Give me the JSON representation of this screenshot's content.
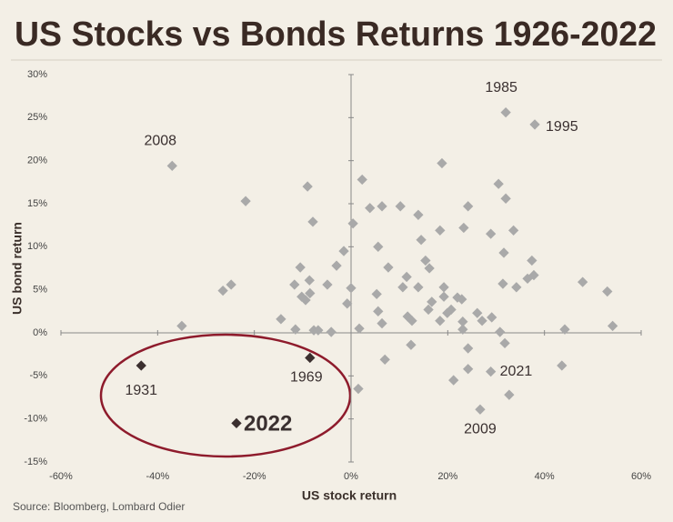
{
  "chart_data": {
    "type": "scatter",
    "title": "US Stocks vs Bonds Returns 1926-2022",
    "x_label": "US stock return",
    "y_label": "US bond return",
    "source": "Source: Bloomberg, Lombard Odier",
    "xlim": [
      -60,
      60
    ],
    "ylim": [
      -15,
      30
    ],
    "xticks": [
      {
        "value": -60,
        "label": "-60%"
      },
      {
        "value": -40,
        "label": "-40%"
      },
      {
        "value": -20,
        "label": "-20%"
      },
      {
        "value": 0,
        "label": "0%"
      },
      {
        "value": 20,
        "label": "20%"
      },
      {
        "value": 40,
        "label": "40%"
      },
      {
        "value": 60,
        "label": "60%"
      }
    ],
    "yticks": [
      {
        "value": -15,
        "label": "-15%"
      },
      {
        "value": -10,
        "label": "-10%"
      },
      {
        "value": -5,
        "label": "-5%"
      },
      {
        "value": 0,
        "label": "0%"
      },
      {
        "value": 5,
        "label": "5%"
      },
      {
        "value": 10,
        "label": "10%"
      },
      {
        "value": 15,
        "label": "15%"
      },
      {
        "value": 20,
        "label": "20%"
      },
      {
        "value": 25,
        "label": "25%"
      },
      {
        "value": 30,
        "label": "30%"
      }
    ],
    "series": [
      {
        "color": "#a9a9a9",
        "x": [
          32,
          38,
          -37,
          28.9,
          26.7,
          -21.8,
          -9,
          -7.9,
          2.3,
          18.8,
          30.5,
          32,
          33.6,
          31.6,
          37.4,
          24.2,
          3.9,
          6.4,
          10.2,
          13.9,
          0.4,
          18.4,
          23.3,
          28.9,
          14.5,
          5.6,
          -1.5,
          -3,
          -4.9,
          7.7,
          11.5,
          15.4,
          16.2,
          -10.5,
          -8.6,
          -11.7,
          -24.8,
          -26.5,
          -8.5,
          -10.2,
          -9.4,
          0,
          -0.8,
          5.3,
          10.7,
          13.9,
          19.2,
          19.2,
          16.7,
          16,
          22,
          22.9,
          31.4,
          34.2,
          36.5,
          37.8,
          47.9,
          53,
          54.1,
          44.2,
          -14.5,
          -35,
          -11.5,
          -7.7,
          -6.8,
          -4.1,
          1.7,
          5.6,
          6.4,
          11.7,
          12.6,
          18.4,
          19.9,
          20.7,
          23.1,
          26.1,
          27.1,
          29.1,
          23.1,
          30.8,
          31.8,
          12.4,
          24.2,
          7,
          24.2,
          21.2,
          43.6,
          1.5,
          32.7
        ],
        "values": [
          25.6,
          24.2,
          19.4,
          -4.5,
          -8.9,
          15.3,
          17,
          12.9,
          17.8,
          19.7,
          17.3,
          15.6,
          11.9,
          9.3,
          8.4,
          14.7,
          14.5,
          14.7,
          14.7,
          13.7,
          12.7,
          11.9,
          12.2,
          11.5,
          10.8,
          10,
          9.5,
          7.8,
          5.6,
          7.6,
          6.5,
          8.4,
          7.5,
          7.6,
          6.1,
          5.6,
          5.6,
          4.9,
          4.6,
          4.2,
          3.8,
          5.2,
          3.4,
          4.5,
          5.3,
          5.3,
          5.3,
          4.2,
          3.6,
          2.7,
          4.1,
          3.9,
          5.7,
          5.3,
          6.3,
          6.7,
          5.9,
          4.8,
          0.8,
          0.4,
          1.6,
          0.8,
          0.4,
          0.3,
          0.3,
          0.1,
          0.5,
          2.5,
          1.1,
          1.9,
          1.4,
          1.4,
          2.3,
          2.7,
          1.3,
          2.3,
          1.4,
          1.8,
          0.4,
          0.1,
          -1.2,
          -1.4,
          -1.8,
          -3.1,
          -4.2,
          -5.5,
          -3.8,
          -6.5,
          -7.2
        ],
        "labels": [
          "1985",
          "1995",
          "2008",
          "2021",
          "2009",
          null,
          null,
          null,
          null,
          null,
          null,
          null,
          null,
          null,
          null,
          null,
          null,
          null,
          null,
          null,
          null,
          null,
          null,
          null,
          null,
          null,
          null,
          null,
          null,
          null,
          null,
          null,
          null,
          null,
          null,
          null,
          null,
          null,
          null,
          null,
          null,
          null,
          null,
          null,
          null,
          null,
          null,
          null,
          null,
          null,
          null,
          null,
          null,
          null,
          null,
          null,
          null,
          null,
          null,
          null,
          null,
          null,
          null,
          null,
          null,
          null,
          null,
          null,
          null,
          null,
          null,
          null,
          null,
          null,
          null,
          null,
          null,
          null,
          null,
          null,
          null,
          null,
          null,
          null,
          null,
          null,
          null,
          null,
          null
        ]
      },
      {
        "color": "#3b2f2f",
        "x": [
          -43.4,
          -8.5,
          -23.7
        ],
        "values": [
          -3.8,
          -2.9,
          -10.5
        ],
        "labels": [
          "1931",
          "1969",
          "2022"
        ]
      }
    ]
  }
}
